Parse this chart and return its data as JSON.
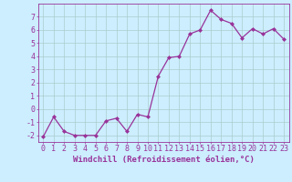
{
  "x": [
    0,
    1,
    2,
    3,
    4,
    5,
    6,
    7,
    8,
    9,
    10,
    11,
    12,
    13,
    14,
    15,
    16,
    17,
    18,
    19,
    20,
    21,
    22,
    23
  ],
  "y": [
    -2.1,
    -0.6,
    -1.7,
    -2.0,
    -2.0,
    -2.0,
    -0.9,
    -0.7,
    -1.7,
    -0.4,
    -0.6,
    2.5,
    3.9,
    4.0,
    5.7,
    6.0,
    7.5,
    6.8,
    6.5,
    5.4,
    6.1,
    5.7,
    6.1,
    5.3
  ],
  "line_color": "#993399",
  "marker": "D",
  "marker_size": 2,
  "bg_color": "#cceeff",
  "grid_color": "#aacccc",
  "axis_color": "#993399",
  "xlabel": "Windchill (Refroidissement éolien,°C)",
  "xlim": [
    -0.5,
    23.5
  ],
  "ylim": [
    -2.5,
    8.0
  ],
  "yticks": [
    -2,
    -1,
    0,
    1,
    2,
    3,
    4,
    5,
    6,
    7
  ],
  "xticks": [
    0,
    1,
    2,
    3,
    4,
    5,
    6,
    7,
    8,
    9,
    10,
    11,
    12,
    13,
    14,
    15,
    16,
    17,
    18,
    19,
    20,
    21,
    22,
    23
  ],
  "tick_fontsize": 6,
  "xlabel_fontsize": 6.5
}
